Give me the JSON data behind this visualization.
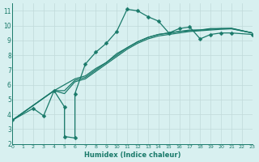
{
  "xlabel": "Humidex (Indice chaleur)",
  "xlim": [
    0,
    23
  ],
  "ylim": [
    2,
    11.5
  ],
  "xticks": [
    0,
    1,
    2,
    3,
    4,
    5,
    6,
    7,
    8,
    9,
    10,
    11,
    12,
    13,
    14,
    15,
    16,
    17,
    18,
    19,
    20,
    21,
    22,
    23
  ],
  "yticks": [
    2,
    3,
    4,
    5,
    6,
    7,
    8,
    9,
    10,
    11
  ],
  "background_color": "#d8f0f0",
  "grid_color": "#c0dada",
  "line_color": "#1a7a6a",
  "line1_x": [
    0,
    2,
    3,
    4,
    5,
    5,
    6,
    6,
    7,
    8,
    9,
    10,
    11,
    12,
    13,
    14,
    15,
    16,
    17,
    18,
    19,
    20,
    21,
    23
  ],
  "line1_y": [
    3.6,
    4.4,
    3.9,
    5.6,
    4.5,
    2.5,
    2.4,
    5.4,
    7.4,
    8.2,
    8.8,
    9.6,
    11.1,
    11.0,
    10.6,
    10.3,
    9.5,
    9.8,
    9.9,
    9.1,
    9.4,
    9.5,
    9.5,
    9.4
  ],
  "line2_x": [
    0,
    4,
    5,
    6,
    7,
    8,
    9,
    10,
    11,
    12,
    13,
    14,
    15,
    16,
    17,
    18,
    19,
    20,
    21,
    23
  ],
  "line2_y": [
    3.6,
    5.6,
    5.6,
    6.3,
    6.5,
    7.0,
    7.5,
    8.0,
    8.5,
    8.9,
    9.2,
    9.4,
    9.5,
    9.6,
    9.7,
    9.7,
    9.8,
    9.8,
    9.8,
    9.5
  ],
  "line3_x": [
    0,
    4,
    5,
    6,
    7,
    8,
    9,
    10,
    11,
    12,
    13,
    14,
    15,
    16,
    17,
    18,
    19,
    20,
    21,
    23
  ],
  "line3_y": [
    3.6,
    5.6,
    6.0,
    6.4,
    6.6,
    7.1,
    7.5,
    8.1,
    8.5,
    8.9,
    9.2,
    9.4,
    9.5,
    9.6,
    9.65,
    9.7,
    9.75,
    9.8,
    9.82,
    9.5
  ],
  "line4_x": [
    0,
    4,
    5,
    6,
    7,
    8,
    9,
    10,
    11,
    12,
    13,
    14,
    15,
    16,
    17,
    18,
    19,
    20,
    21,
    23
  ],
  "line4_y": [
    3.6,
    5.6,
    5.4,
    6.2,
    6.4,
    6.9,
    7.4,
    7.9,
    8.4,
    8.8,
    9.1,
    9.3,
    9.4,
    9.5,
    9.6,
    9.65,
    9.7,
    9.75,
    9.78,
    9.5
  ]
}
